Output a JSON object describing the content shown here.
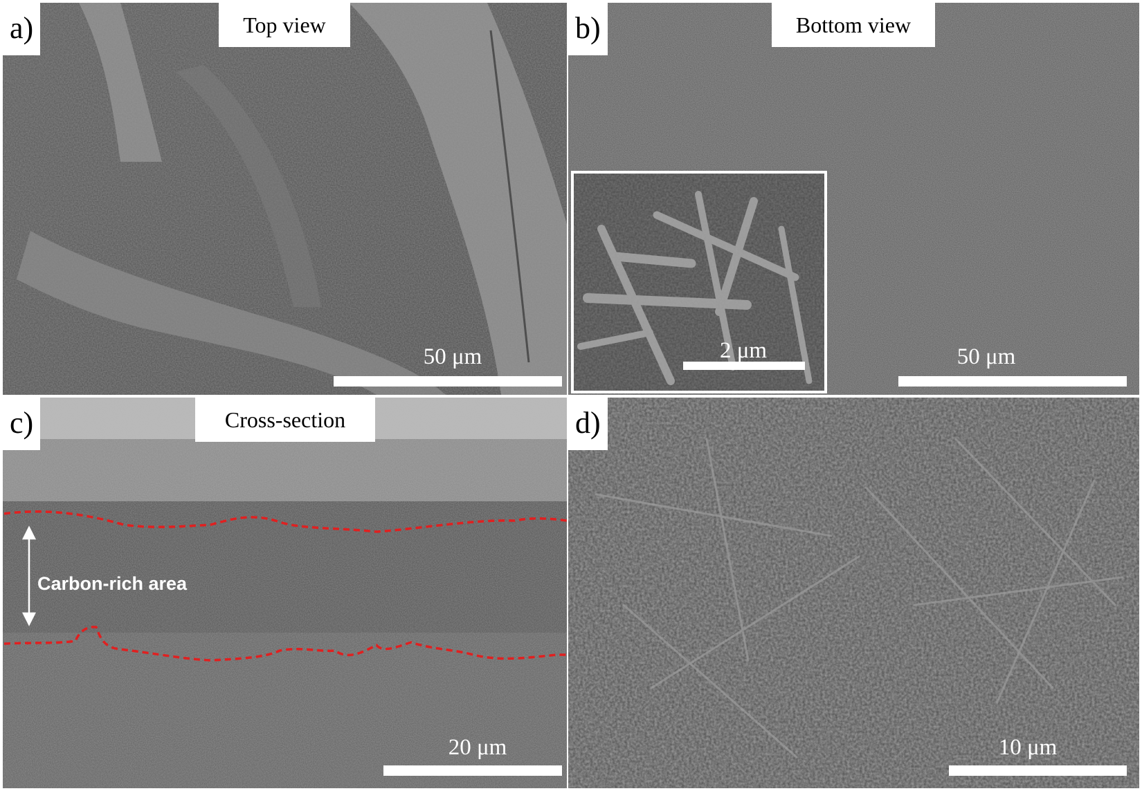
{
  "panels": {
    "a": {
      "letter": "a)",
      "caption": "Top view",
      "scale": "50 μm"
    },
    "b": {
      "letter": "b)",
      "caption": "Bottom view",
      "scale": "50 μm",
      "inset_scale": "2 μm"
    },
    "c": {
      "letter": "c)",
      "caption": "Cross-section",
      "scale": "20 μm",
      "region_label": "Carbon-rich area"
    },
    "d": {
      "letter": "d)",
      "scale": "10 μm"
    }
  },
  "colors": {
    "boundary_line": "#e02020",
    "label_background": "#ffffff",
    "scale_bar": "#ffffff"
  }
}
